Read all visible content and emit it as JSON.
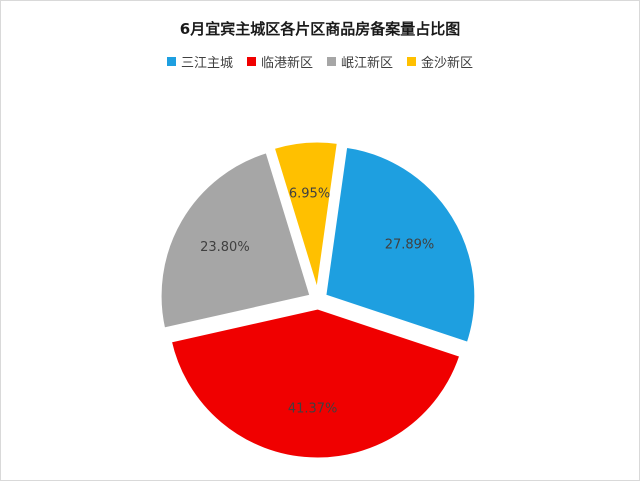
{
  "chart_data": {
    "type": "pie",
    "title": "6月宜宾主城区各片区商品房备案量占比图",
    "legend_position": "top",
    "slices": [
      {
        "name": "三江主城",
        "value": 27.89,
        "label": "27.89%",
        "color": "#1e9fe0"
      },
      {
        "name": "临港新区",
        "value": 41.37,
        "label": "41.37%",
        "color": "#f00000"
      },
      {
        "name": "岷江新区",
        "value": 23.8,
        "label": "23.80%",
        "color": "#a6a6a6"
      },
      {
        "name": "金沙新区",
        "value": 6.95,
        "label": "6.95%",
        "color": "#ffc000"
      }
    ]
  }
}
